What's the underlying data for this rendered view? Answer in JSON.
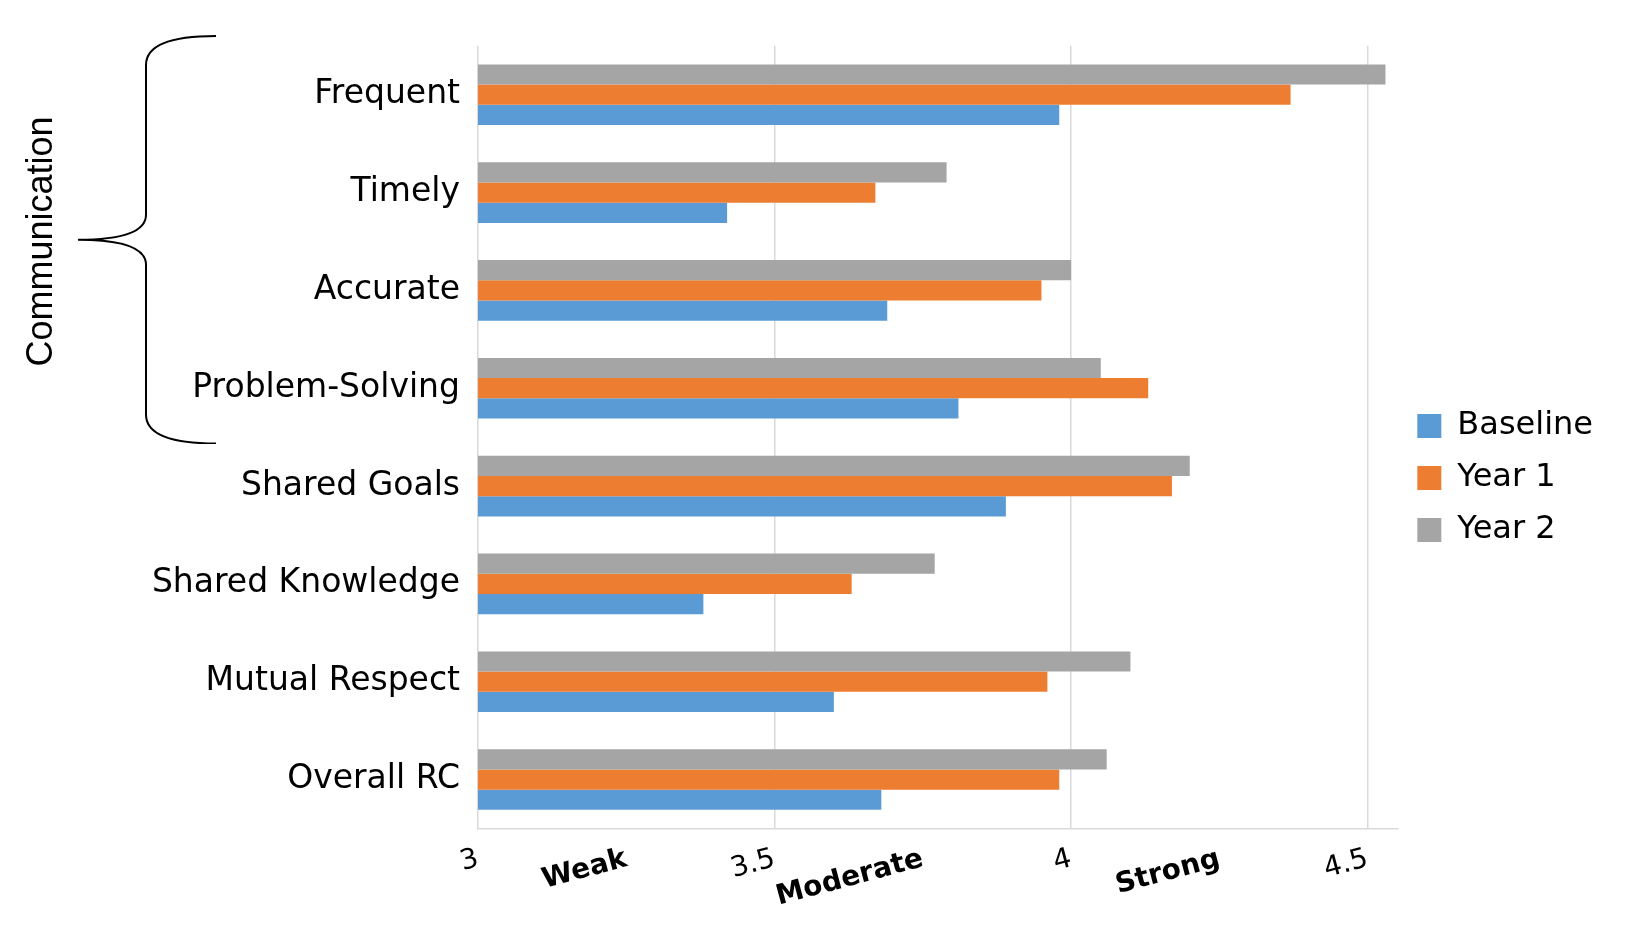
{
  "chart_data": {
    "type": "bar",
    "orientation": "horizontal",
    "categories": [
      "Frequent",
      "Timely",
      "Accurate",
      "Problem-Solving",
      "Shared Goals",
      "Shared Knowledge",
      "Mutual Respect",
      "Overall RC"
    ],
    "series": [
      {
        "name": "Baseline",
        "color": "#5b9bd5",
        "values": [
          3.98,
          3.42,
          3.69,
          3.81,
          3.89,
          3.38,
          3.6,
          3.68
        ]
      },
      {
        "name": "Year 1",
        "color": "#ed7d31",
        "values": [
          4.37,
          3.67,
          3.95,
          4.13,
          4.17,
          3.63,
          3.96,
          3.98
        ]
      },
      {
        "name": "Year 2",
        "color": "#a5a5a5",
        "values": [
          4.53,
          3.79,
          4.0,
          4.05,
          4.2,
          3.77,
          4.1,
          4.06
        ]
      }
    ],
    "xlim": [
      3,
      4.55
    ],
    "xticks": [
      3,
      {
        "value": 3.25,
        "label": "Weak"
      },
      3.5,
      {
        "value": 3.75,
        "label": "Moderate"
      },
      4,
      {
        "value": 4.25,
        "label": "Strong"
      },
      4.5
    ],
    "grid": "x",
    "legend": "right",
    "annotations": [
      "Communication"
    ]
  }
}
